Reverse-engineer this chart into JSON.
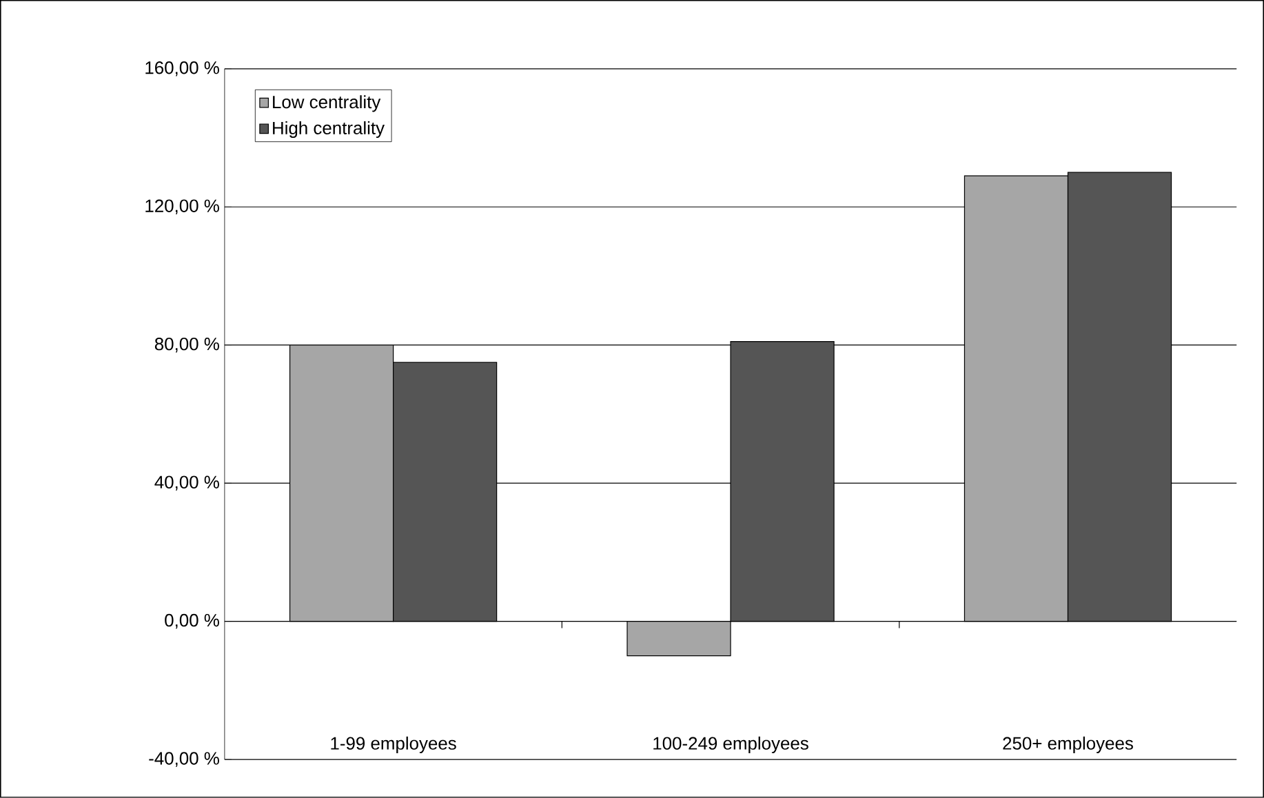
{
  "chart_data": {
    "type": "bar",
    "categories": [
      "1-99 employees",
      "100-249 employees",
      "250+ employees"
    ],
    "series": [
      {
        "name": "Low centrality",
        "color": "#a6a6a6",
        "values": [
          80,
          -10,
          129
        ]
      },
      {
        "name": "High centrality",
        "color": "#555555",
        "values": [
          75,
          81,
          130
        ]
      }
    ],
    "ylim": [
      -40,
      160
    ],
    "yticks": [
      {
        "value": -40,
        "label": "-40,00 %"
      },
      {
        "value": 0,
        "label": "0,00 %"
      },
      {
        "value": 40,
        "label": "40,00 %"
      },
      {
        "value": 80,
        "label": "80,00 %"
      },
      {
        "value": 120,
        "label": "120,00 %"
      },
      {
        "value": 160,
        "label": "160,00 %"
      }
    ],
    "grid": "y",
    "legend": "top left"
  }
}
